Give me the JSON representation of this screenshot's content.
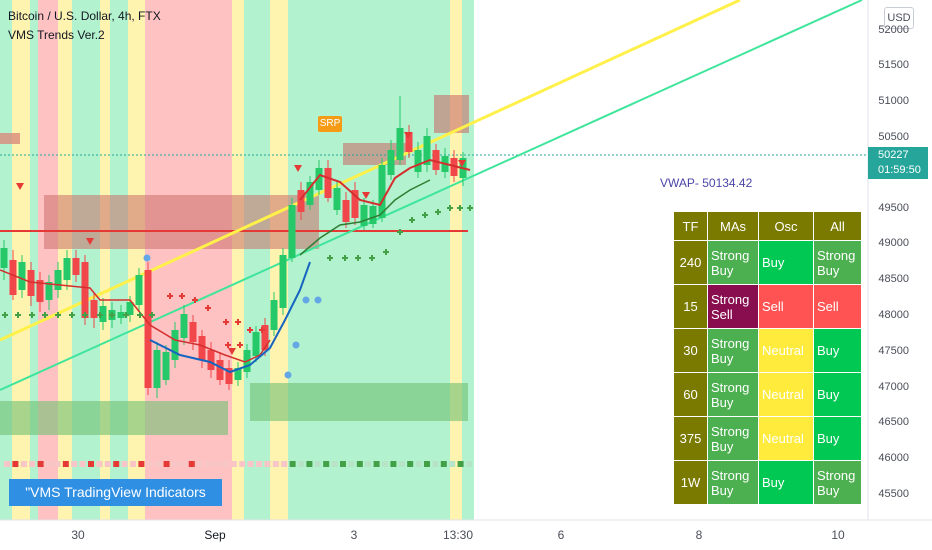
{
  "header": {
    "symbol_line": "Bitcoin / U.S. Dollar, 4h, FTX",
    "indicator_name": "VMS Trends Ver.2"
  },
  "currency": "USD",
  "y_axis_labels": [
    "52000",
    "51500",
    "51000",
    "50500",
    "49500",
    "49000",
    "48500",
    "48000",
    "47500",
    "47000",
    "46500",
    "46000",
    "45500"
  ],
  "price_tag": {
    "price": "50227",
    "countdown": "01:59:50",
    "color": "#26a69a"
  },
  "x_axis_labels": [
    {
      "label": "30",
      "bold": false
    },
    {
      "label": "Sep",
      "bold": true
    },
    {
      "label": "3",
      "bold": false
    },
    {
      "label": "13:30",
      "bold": false
    },
    {
      "label": "6",
      "bold": false
    },
    {
      "label": "8",
      "bold": false
    },
    {
      "label": "10",
      "bold": false
    }
  ],
  "vwap_label": "VWAP- 50134.42",
  "srp_label": "SRP",
  "banner": "\"VMS TradingView Indicators",
  "signal_table": {
    "headers": [
      "TF",
      "MAs",
      "Osc",
      "All"
    ],
    "rows": [
      {
        "tf": "240",
        "mas": "Strong Buy",
        "osc": "Buy",
        "all": "Strong Buy",
        "mas_color": "#4caf50",
        "osc_color": "#00c853",
        "all_color": "#4caf50"
      },
      {
        "tf": "15",
        "mas": "Strong Sell",
        "osc": "Sell",
        "all": "Sell",
        "mas_color": "#880e4f",
        "osc_color": "#ff5252",
        "all_color": "#ff5252"
      },
      {
        "tf": "30",
        "mas": "Strong Buy",
        "osc": "Neutral",
        "all": "Buy",
        "mas_color": "#4caf50",
        "osc_color": "#ffeb3b",
        "all_color": "#00c853"
      },
      {
        "tf": "60",
        "mas": "Strong Buy",
        "osc": "Neutral",
        "all": "Buy",
        "mas_color": "#4caf50",
        "osc_color": "#ffeb3b",
        "all_color": "#00c853"
      },
      {
        "tf": "375",
        "mas": "Strong Buy",
        "osc": "Neutral",
        "all": "Buy",
        "mas_color": "#4caf50",
        "osc_color": "#ffeb3b",
        "all_color": "#00c853"
      },
      {
        "tf": "1W",
        "mas": "Strong Buy",
        "osc": "Buy",
        "all": "Strong Buy",
        "mas_color": "#4caf50",
        "osc_color": "#00c853",
        "all_color": "#4caf50"
      }
    ]
  },
  "colors": {
    "up_candle": "#26c96a",
    "down_candle": "#f2474a",
    "trend_line_yellow": "#fff04a",
    "trend_line_green": "#3ee59a",
    "bg_green": "#b2f2cf",
    "bg_red": "#ffc2c2",
    "bg_yellow": "#fff3b0",
    "resistance_line": "#e53935",
    "table_header": "#7a7a00"
  }
}
